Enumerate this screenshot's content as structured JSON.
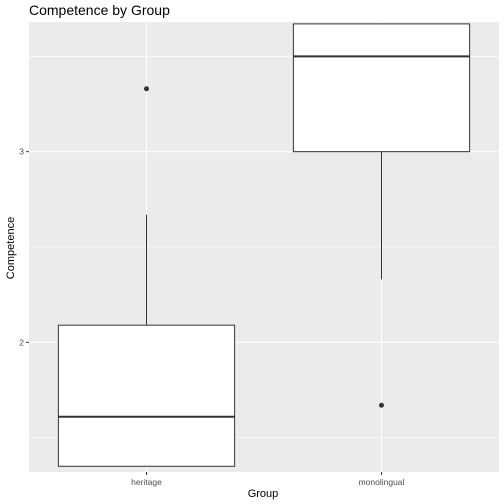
{
  "chart_data": {
    "type": "boxplot",
    "title": "Competence by Group",
    "xlabel": "Group",
    "ylabel": "Competence",
    "categories": [
      "heritage",
      "monolingual"
    ],
    "ylim": [
      1.32,
      3.68
    ],
    "yticks": [
      2,
      3
    ],
    "ytick_labels": [
      "2",
      "3"
    ],
    "grid": true,
    "boxes": [
      {
        "category": "heritage",
        "q1": 1.35,
        "median": 1.61,
        "q3": 2.09,
        "whisker_low": 1.35,
        "whisker_high": 2.67,
        "outliers": [
          3.33
        ]
      },
      {
        "category": "monolingual",
        "q1": 3.0,
        "median": 3.5,
        "q3": 3.67,
        "whisker_low": 2.33,
        "whisker_high": 3.67,
        "outliers": [
          1.67
        ]
      }
    ]
  },
  "colors": {
    "panel_background": "#ebebeb",
    "grid_major": "#ffffff",
    "box_fill": "#ffffff",
    "box_stroke": "#333333",
    "text": "#000000",
    "tick_text": "#4d4d4d"
  }
}
